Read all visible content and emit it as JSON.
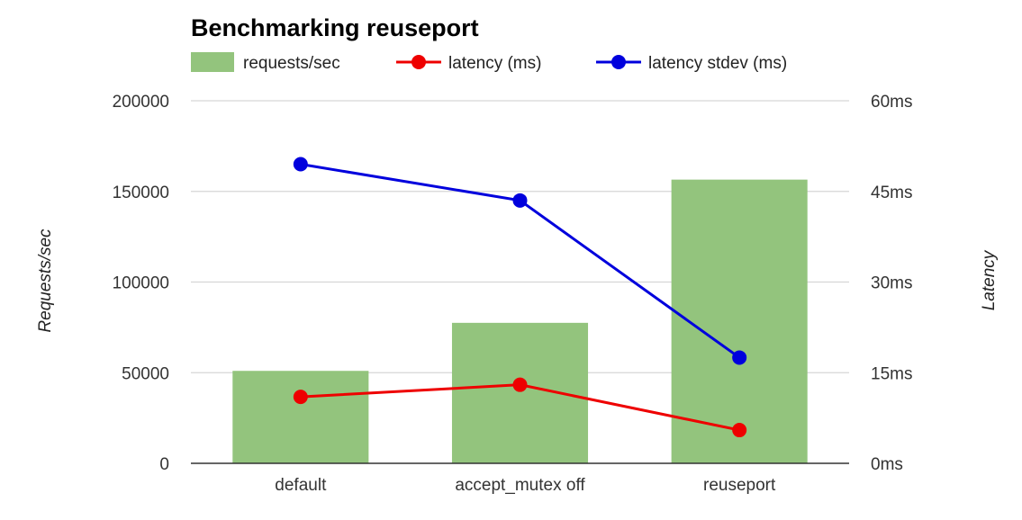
{
  "chart_data": {
    "type": "bar+line",
    "title": "Benchmarking reuseport",
    "categories": [
      "default",
      "accept_mutex off",
      "reuseport"
    ],
    "bar_series": {
      "name": "requests/sec",
      "axis": "left",
      "color": "#93c47d",
      "values": [
        51000,
        77500,
        156500
      ]
    },
    "line_series": [
      {
        "name": "latency (ms)",
        "axis": "right",
        "color": "#ee0000",
        "values": [
          11,
          13,
          5.5
        ]
      },
      {
        "name": "latency stdev (ms)",
        "axis": "right",
        "color": "#0000dd",
        "values": [
          49.5,
          43.5,
          17.5
        ]
      }
    ],
    "ylabel_left": "Requests/sec",
    "ylabel_right": "Latency",
    "ylim_left": [
      0,
      200000
    ],
    "ylim_right": [
      0,
      60
    ],
    "left_ticks": [
      "0",
      "50000",
      "100000",
      "150000",
      "200000"
    ],
    "right_ticks": [
      "0ms",
      "15ms",
      "30ms",
      "45ms",
      "60ms"
    ],
    "grid": true,
    "legend_position": "top"
  }
}
